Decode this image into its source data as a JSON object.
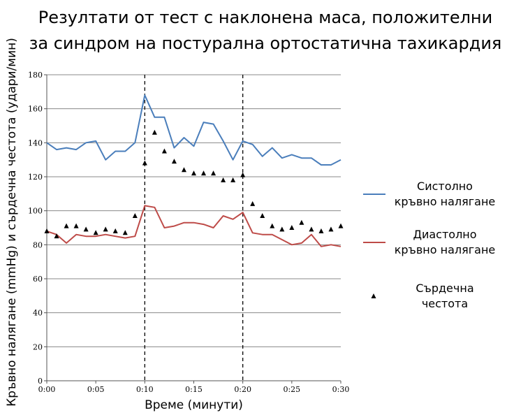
{
  "chart_data": {
    "type": "line",
    "title": [
      "Резултати от тест с наклонена маса, положителни",
      "за синдром на постурална ортостатична тахикардия"
    ],
    "xlabel": "Време (минути)",
    "ylabel": "Кръвно налягане (mmHg) и сърдечна честота (удари/мин)",
    "xlim": [
      0,
      30
    ],
    "ylim": [
      0,
      180
    ],
    "x_ticks": [
      0,
      5,
      10,
      15,
      20,
      25,
      30
    ],
    "x_tick_labels": [
      "0:00",
      "0:05",
      "0:10",
      "0:15",
      "0:20",
      "0:25",
      "0:30"
    ],
    "y_ticks": [
      0,
      20,
      40,
      60,
      80,
      100,
      120,
      140,
      160,
      180
    ],
    "grid": "horizontal",
    "vertical_markers": [
      10,
      20
    ],
    "legend_position": "right",
    "series": [
      {
        "name": [
          "Систолно",
          "кръвно налягане"
        ],
        "style": "line",
        "color": "#4a7ebb",
        "x": [
          0,
          1,
          2,
          3,
          4,
          5,
          6,
          7,
          8,
          9,
          10,
          11,
          12,
          13,
          14,
          15,
          16,
          17,
          18,
          19,
          20,
          21,
          22,
          23,
          24,
          25,
          26,
          27,
          28,
          29,
          30
        ],
        "values": [
          140,
          136,
          137,
          136,
          140,
          141,
          130,
          135,
          135,
          140,
          168,
          155,
          155,
          137,
          143,
          138,
          152,
          151,
          141,
          130,
          141,
          139,
          132,
          137,
          131,
          133,
          131,
          131,
          127,
          127,
          130
        ]
      },
      {
        "name": [
          "Диастолно",
          "кръвно налягане"
        ],
        "style": "line",
        "color": "#be4b48",
        "x": [
          0,
          1,
          2,
          3,
          4,
          5,
          6,
          7,
          8,
          9,
          10,
          11,
          12,
          13,
          14,
          15,
          16,
          17,
          18,
          19,
          20,
          21,
          22,
          23,
          24,
          25,
          26,
          27,
          28,
          29,
          30
        ],
        "values": [
          88,
          86,
          81,
          86,
          85,
          85,
          86,
          85,
          84,
          85,
          103,
          102,
          90,
          91,
          93,
          93,
          92,
          90,
          97,
          95,
          99,
          87,
          86,
          86,
          83,
          80,
          81,
          86,
          79,
          80,
          79
        ]
      },
      {
        "name": [
          "Сърдечна",
          "честота"
        ],
        "style": "markers",
        "color": "#000000",
        "x": [
          0,
          1,
          2,
          3,
          4,
          5,
          6,
          7,
          8,
          9,
          10,
          11,
          12,
          13,
          14,
          15,
          16,
          17,
          18,
          19,
          20,
          21,
          22,
          23,
          24,
          25,
          26,
          27,
          28,
          29,
          30
        ],
        "values": [
          88,
          85,
          91,
          91,
          89,
          87,
          89,
          88,
          87,
          97,
          128,
          146,
          135,
          129,
          124,
          122,
          122,
          122,
          118,
          118,
          121,
          104,
          97,
          91,
          89,
          90,
          93,
          89,
          88,
          89,
          91
        ]
      }
    ]
  }
}
